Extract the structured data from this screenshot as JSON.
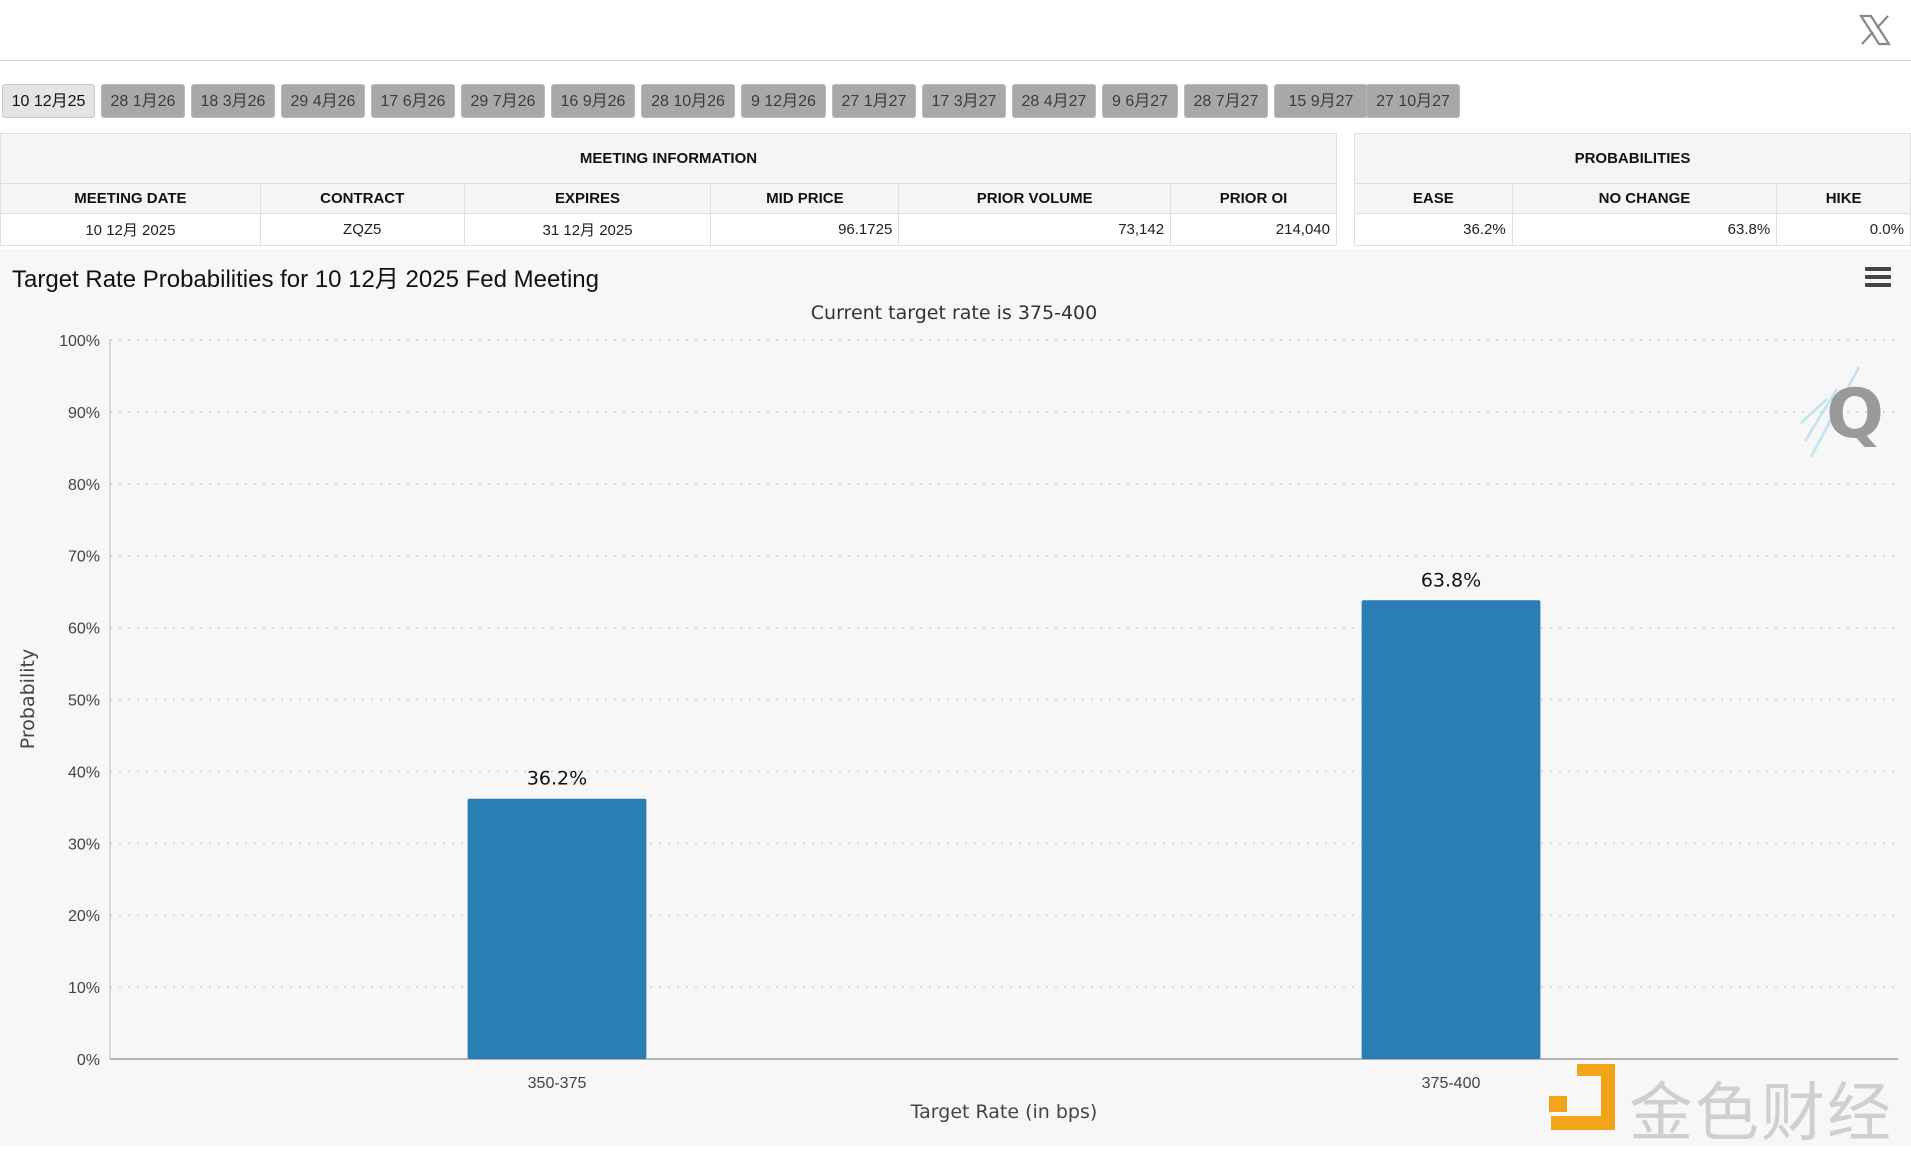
{
  "header": {
    "close_icon": "x-logo-icon"
  },
  "tabs": [
    "10 12月25",
    "28 1月26",
    "18 3月26",
    "29 4月26",
    "17 6月26",
    "29 7月26",
    "16 9月26",
    "28 10月26",
    "9 12月26",
    "27 1月27",
    "17 3月27",
    "28 4月27",
    "9 6月27",
    "28 7月27",
    "15 9月27",
    "27 10月27"
  ],
  "active_tab": 0,
  "meeting_info": {
    "group_label": "MEETING INFORMATION",
    "headers": [
      "MEETING DATE",
      "CONTRACT",
      "EXPIRES",
      "MID PRICE",
      "PRIOR VOLUME",
      "PRIOR OI"
    ],
    "row": [
      "10 12月 2025",
      "ZQZ5",
      "31 12月 2025",
      "96.1725",
      "73,142",
      "214,040"
    ]
  },
  "probabilities": {
    "group_label": "PROBABILITIES",
    "headers": [
      "EASE",
      "NO CHANGE",
      "HIKE"
    ],
    "row": [
      "36.2%",
      "63.8%",
      "0.0%"
    ]
  },
  "colors": {
    "bar": "#2a7db5",
    "gridline": "#cccccc"
  },
  "watermarks": {
    "corner_logo": "Q",
    "brand_text": "金色财经"
  },
  "chart_data": {
    "type": "bar",
    "title": "Target Rate Probabilities for 10 12月 2025 Fed Meeting",
    "subtitle": "Current target rate is 375-400",
    "categories": [
      "350-375",
      "375-400"
    ],
    "values": [
      36.2,
      63.8
    ],
    "data_labels": [
      "36.2%",
      "63.8%"
    ],
    "xlabel": "Target Rate (in bps)",
    "ylabel": "Probability",
    "ylim": [
      0,
      100
    ],
    "yticks": [
      0,
      10,
      20,
      30,
      40,
      50,
      60,
      70,
      80,
      90,
      100
    ],
    "ytick_labels": [
      "0%",
      "10%",
      "20%",
      "30%",
      "40%",
      "50%",
      "60%",
      "70%",
      "80%",
      "90%",
      "100%"
    ],
    "grid": true
  }
}
